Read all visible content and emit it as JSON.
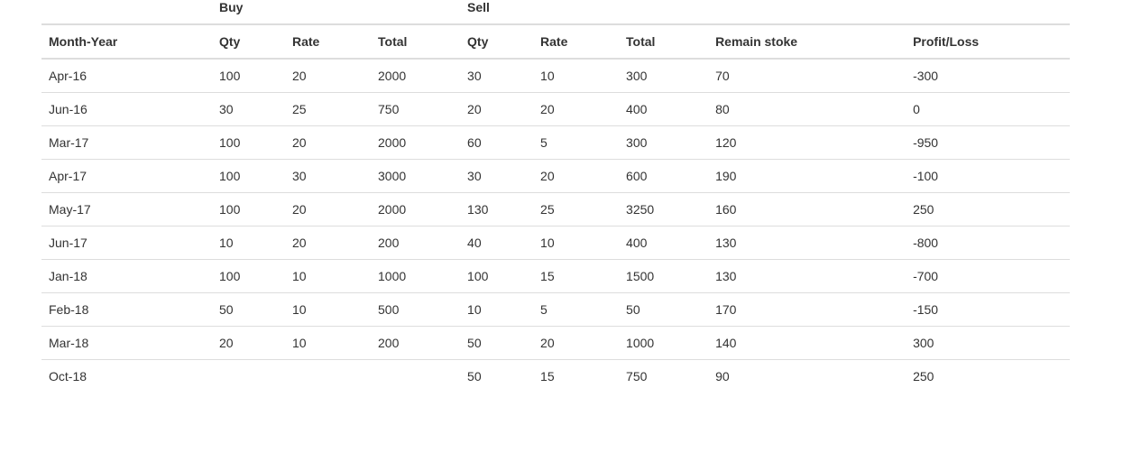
{
  "group_headers": [
    "",
    "Buy",
    "Sell",
    "",
    ""
  ],
  "columns": [
    "Month-Year",
    "Qty",
    "Rate",
    "Total",
    "Qty",
    "Rate",
    "Total",
    "Remain stoke",
    "Profit/Loss"
  ],
  "rows": [
    [
      "Apr-16",
      "100",
      "20",
      "2000",
      "30",
      "10",
      "300",
      "70",
      "-300"
    ],
    [
      "Jun-16",
      "30",
      "25",
      "750",
      "20",
      "20",
      "400",
      "80",
      "0"
    ],
    [
      "Mar-17",
      "100",
      "20",
      "2000",
      "60",
      "5",
      "300",
      "120",
      "-950"
    ],
    [
      "Apr-17",
      "100",
      "30",
      "3000",
      "30",
      "20",
      "600",
      "190",
      "-100"
    ],
    [
      "May-17",
      "100",
      "20",
      "2000",
      "130",
      "25",
      "3250",
      "160",
      "250"
    ],
    [
      "Jun-17",
      "10",
      "20",
      "200",
      "40",
      "10",
      "400",
      "130",
      "-800"
    ],
    [
      "Jan-18",
      "100",
      "10",
      "1000",
      "100",
      "15",
      "1500",
      "130",
      "-700"
    ],
    [
      "Feb-18",
      "50",
      "10",
      "500",
      "10",
      "5",
      "50",
      "170",
      "-150"
    ],
    [
      "Mar-18",
      "20",
      "10",
      "200",
      "50",
      "20",
      "1000",
      "140",
      "300"
    ],
    [
      "Oct-18",
      "",
      "",
      "",
      "50",
      "15",
      "750",
      "90",
      "250"
    ]
  ]
}
